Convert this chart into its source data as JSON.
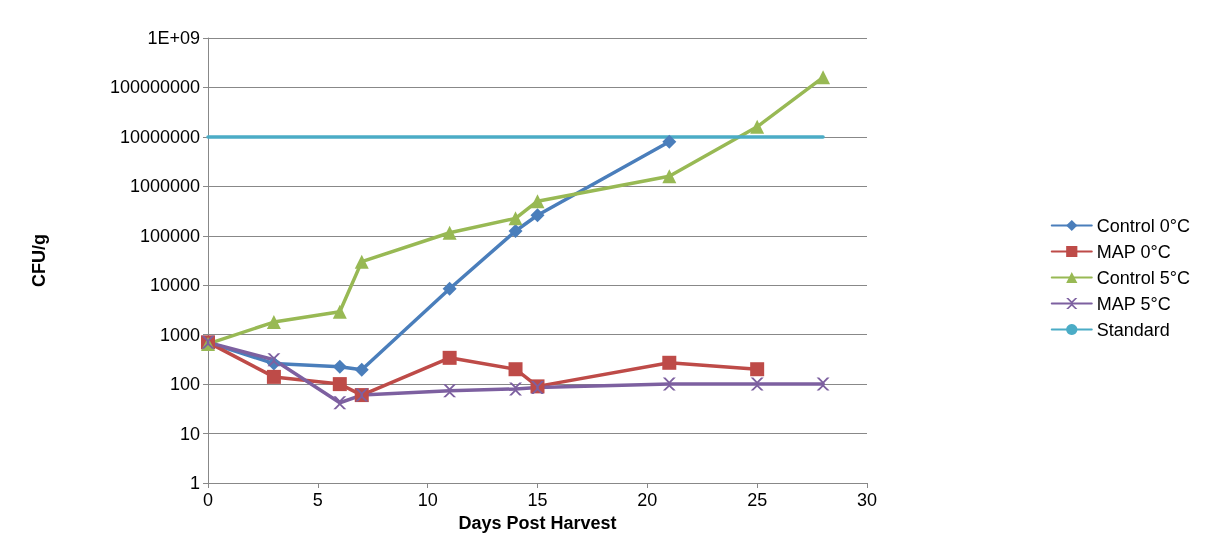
{
  "chart_data": {
    "type": "line",
    "xlabel": "Days Post Harvest",
    "ylabel": "CFU/g",
    "log": "y",
    "grid": "y",
    "legend": "right",
    "line_style": "solid",
    "xlim": [
      0,
      30
    ],
    "xticks": [
      0,
      5,
      10,
      15,
      20,
      25,
      30
    ],
    "ylim": [
      1,
      1000000000
    ],
    "yticks": [
      1,
      10,
      100,
      1000,
      10000,
      100000,
      1000000,
      10000000,
      100000000,
      {
        "value": 1000000000,
        "label": "1E+09"
      }
    ],
    "series": [
      {
        "name": "Control 0°C",
        "color": "#4a7ebb",
        "marker": "diamond",
        "x": [
          0,
          3,
          6,
          7,
          11,
          14,
          15,
          21
        ],
        "values": [
          700,
          260,
          225,
          195,
          8500,
          125000,
          260000,
          8000000
        ]
      },
      {
        "name": "MAP 0°C",
        "color": "#be4b48",
        "marker": "square",
        "x": [
          0,
          3,
          6,
          7,
          11,
          14,
          15,
          21,
          25
        ],
        "values": [
          700,
          140,
          100,
          60,
          340,
          200,
          90,
          270,
          200
        ]
      },
      {
        "name": "Control 5°C",
        "color": "#98b954",
        "marker": "triangle",
        "x": [
          0,
          3,
          6,
          7,
          11,
          14,
          15,
          21,
          25,
          28
        ],
        "values": [
          650,
          1800,
          2900,
          30000,
          115000,
          225000,
          500000,
          1600000,
          16000000,
          160000000
        ]
      },
      {
        "name": "MAP 5°C",
        "color": "#7d60a0",
        "marker": "cross",
        "x": [
          0,
          3,
          6,
          7,
          11,
          14,
          15,
          21,
          25,
          28
        ],
        "values": [
          700,
          310,
          42,
          60,
          73,
          80,
          85,
          100,
          100,
          100
        ]
      },
      {
        "name": "Standard",
        "color": "#4bacc6",
        "marker": "none",
        "x": [
          0,
          28
        ],
        "values": [
          10000000,
          10000000
        ]
      }
    ]
  }
}
